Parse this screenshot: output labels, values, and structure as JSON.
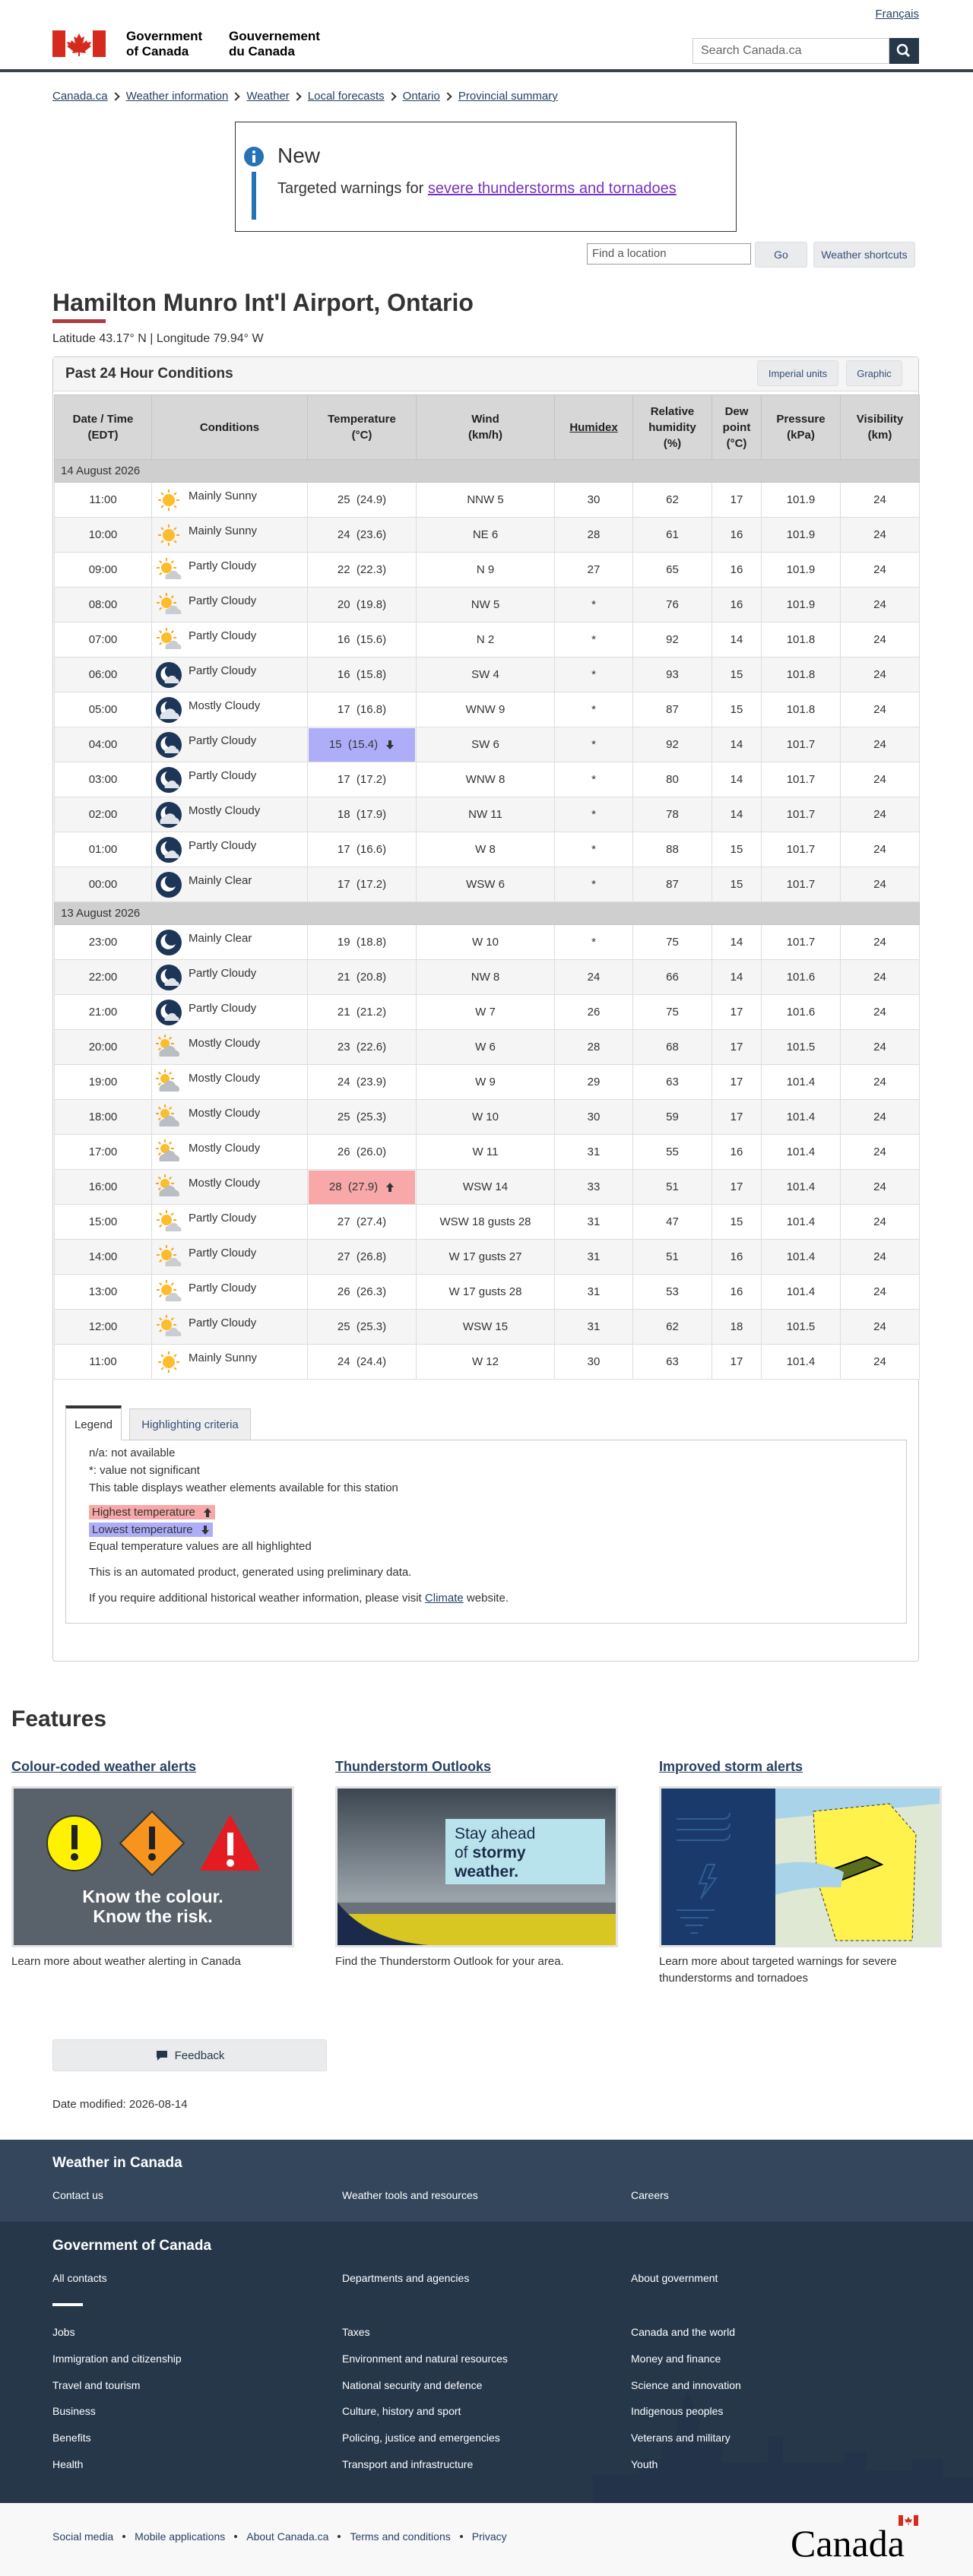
{
  "header": {
    "language": "Français",
    "gov_en": [
      "Government",
      "of Canada"
    ],
    "gov_fr": [
      "Gouvernement",
      "du Canada"
    ],
    "search_placeholder": "Search Canada.ca"
  },
  "breadcrumb": [
    "Canada.ca",
    "Weather information",
    "Weather",
    "Local forecasts",
    "Ontario",
    "Provincial summary"
  ],
  "notice": {
    "title": "New",
    "text": "Targeted warnings for ",
    "link": "severe thunderstorms and tornadoes"
  },
  "location_form": {
    "placeholder": "Find a location",
    "go": "Go",
    "shortcuts": "Weather shortcuts"
  },
  "page_title": "Hamilton Munro Int'l Airport, Ontario",
  "coordinates": "Latitude 43.17° N | Longitude 79.94° W",
  "conditions": {
    "title": "Past 24 Hour Conditions",
    "buttons": [
      "Imperial units",
      "Graphic"
    ],
    "columns": [
      [
        "Date / Time",
        "(EDT)"
      ],
      [
        "Conditions"
      ],
      [
        "Temperature",
        "(°C)"
      ],
      [
        "Wind",
        "(km/h)"
      ],
      [
        "Humidex"
      ],
      [
        "Relative",
        "humidity",
        "(%)"
      ],
      [
        "Dew",
        "point",
        "(°C)"
      ],
      [
        "Pressure",
        "(kPa)"
      ],
      [
        "Visibility",
        "(km)"
      ]
    ],
    "groups": [
      {
        "date": "14 August 2026",
        "rows": [
          {
            "time": "11:00",
            "icon": "sunny",
            "condition": "Mainly Sunny",
            "temperature": "25  (24.9)",
            "wind": "NNW 5",
            "humidex": "30",
            "humidity": 62,
            "dew_point": 17,
            "pressure": 101.9,
            "visibility": 24
          },
          {
            "time": "10:00",
            "icon": "sunny",
            "condition": "Mainly Sunny",
            "temperature": "24  (23.6)",
            "wind": "NE 6",
            "humidex": "28",
            "humidity": 61,
            "dew_point": 16,
            "pressure": 101.9,
            "visibility": 24
          },
          {
            "time": "09:00",
            "icon": "partly-day",
            "condition": "Partly Cloudy",
            "temperature": "22  (22.3)",
            "wind": "N 9",
            "humidex": "27",
            "humidity": 65,
            "dew_point": 16,
            "pressure": 101.9,
            "visibility": 24
          },
          {
            "time": "08:00",
            "icon": "partly-day",
            "condition": "Partly Cloudy",
            "temperature": "20  (19.8)",
            "wind": "NW 5",
            "humidex": "*",
            "humidity": 76,
            "dew_point": 16,
            "pressure": 101.9,
            "visibility": 24
          },
          {
            "time": "07:00",
            "icon": "partly-day",
            "condition": "Partly Cloudy",
            "temperature": "16  (15.6)",
            "wind": "N 2",
            "humidex": "*",
            "humidity": 92,
            "dew_point": 14,
            "pressure": 101.8,
            "visibility": 24
          },
          {
            "time": "06:00",
            "icon": "partly-night",
            "condition": "Partly Cloudy",
            "temperature": "16  (15.8)",
            "wind": "SW 4",
            "humidex": "*",
            "humidity": 93,
            "dew_point": 15,
            "pressure": 101.8,
            "visibility": 24
          },
          {
            "time": "05:00",
            "icon": "cloudy-night",
            "condition": "Mostly Cloudy",
            "temperature": "17  (16.8)",
            "wind": "WNW 9",
            "humidex": "*",
            "humidity": 87,
            "dew_point": 15,
            "pressure": 101.8,
            "visibility": 24
          },
          {
            "time": "04:00",
            "icon": "partly-night",
            "condition": "Partly Cloudy",
            "temperature": "15  (15.4)",
            "wind": "SW 6",
            "humidex": "*",
            "humidity": 92,
            "dew_point": 14,
            "pressure": 101.7,
            "visibility": 24,
            "highlight": "low"
          },
          {
            "time": "03:00",
            "icon": "partly-night",
            "condition": "Partly Cloudy",
            "temperature": "17  (17.2)",
            "wind": "WNW 8",
            "humidex": "*",
            "humidity": 80,
            "dew_point": 14,
            "pressure": 101.7,
            "visibility": 24
          },
          {
            "time": "02:00",
            "icon": "cloudy-night",
            "condition": "Mostly Cloudy",
            "temperature": "18  (17.9)",
            "wind": "NW 11",
            "humidex": "*",
            "humidity": 78,
            "dew_point": 14,
            "pressure": 101.7,
            "visibility": 24
          },
          {
            "time": "01:00",
            "icon": "partly-night",
            "condition": "Partly Cloudy",
            "temperature": "17  (16.6)",
            "wind": "W 8",
            "humidex": "*",
            "humidity": 88,
            "dew_point": 15,
            "pressure": 101.7,
            "visibility": 24
          },
          {
            "time": "00:00",
            "icon": "clear-night",
            "condition": "Mainly Clear",
            "temperature": "17  (17.2)",
            "wind": "WSW 6",
            "humidex": "*",
            "humidity": 87,
            "dew_point": 15,
            "pressure": 101.7,
            "visibility": 24
          }
        ]
      },
      {
        "date": "13 August 2026",
        "rows": [
          {
            "time": "23:00",
            "icon": "clear-night",
            "condition": "Mainly Clear",
            "temperature": "19  (18.8)",
            "wind": "W 10",
            "humidex": "*",
            "humidity": 75,
            "dew_point": 14,
            "pressure": 101.7,
            "visibility": 24
          },
          {
            "time": "22:00",
            "icon": "partly-night",
            "condition": "Partly Cloudy",
            "temperature": "21  (20.8)",
            "wind": "NW 8",
            "humidex": "24",
            "humidity": 66,
            "dew_point": 14,
            "pressure": 101.6,
            "visibility": 24
          },
          {
            "time": "21:00",
            "icon": "partly-night",
            "condition": "Partly Cloudy",
            "temperature": "21  (21.2)",
            "wind": "W 7",
            "humidex": "26",
            "humidity": 75,
            "dew_point": 17,
            "pressure": 101.6,
            "visibility": 24
          },
          {
            "time": "20:00",
            "icon": "cloudy-day",
            "condition": "Mostly Cloudy",
            "temperature": "23  (22.6)",
            "wind": "W 6",
            "humidex": "28",
            "humidity": 68,
            "dew_point": 17,
            "pressure": 101.5,
            "visibility": 24
          },
          {
            "time": "19:00",
            "icon": "cloudy-day",
            "condition": "Mostly Cloudy",
            "temperature": "24  (23.9)",
            "wind": "W 9",
            "humidex": "29",
            "humidity": 63,
            "dew_point": 17,
            "pressure": 101.4,
            "visibility": 24
          },
          {
            "time": "18:00",
            "icon": "cloudy-day",
            "condition": "Mostly Cloudy",
            "temperature": "25  (25.3)",
            "wind": "W 10",
            "humidex": "30",
            "humidity": 59,
            "dew_point": 17,
            "pressure": 101.4,
            "visibility": 24
          },
          {
            "time": "17:00",
            "icon": "cloudy-day",
            "condition": "Mostly Cloudy",
            "temperature": "26  (26.0)",
            "wind": "W 11",
            "humidex": "31",
            "humidity": 55,
            "dew_point": 16,
            "pressure": 101.4,
            "visibility": 24
          },
          {
            "time": "16:00",
            "icon": "cloudy-day",
            "condition": "Mostly Cloudy",
            "temperature": "28  (27.9)",
            "wind": "WSW 14",
            "humidex": "33",
            "humidity": 51,
            "dew_point": 17,
            "pressure": 101.4,
            "visibility": 24,
            "highlight": "high"
          },
          {
            "time": "15:00",
            "icon": "partly-day",
            "condition": "Partly Cloudy",
            "temperature": "27  (27.4)",
            "wind": "WSW 18 gusts 28",
            "humidex": "31",
            "humidity": 47,
            "dew_point": 15,
            "pressure": 101.4,
            "visibility": 24
          },
          {
            "time": "14:00",
            "icon": "partly-day",
            "condition": "Partly Cloudy",
            "temperature": "27  (26.8)",
            "wind": "W 17 gusts 27",
            "humidex": "31",
            "humidity": 51,
            "dew_point": 16,
            "pressure": 101.4,
            "visibility": 24
          },
          {
            "time": "13:00",
            "icon": "partly-day",
            "condition": "Partly Cloudy",
            "temperature": "26  (26.3)",
            "wind": "W 17 gusts 28",
            "humidex": "31",
            "humidity": 53,
            "dew_point": 16,
            "pressure": 101.4,
            "visibility": 24
          },
          {
            "time": "12:00",
            "icon": "partly-day",
            "condition": "Partly Cloudy",
            "temperature": "25  (25.3)",
            "wind": "WSW 15",
            "humidex": "31",
            "humidity": 62,
            "dew_point": 18,
            "pressure": 101.5,
            "visibility": 24
          },
          {
            "time": "11:00",
            "icon": "sunny",
            "condition": "Mainly Sunny",
            "temperature": "24  (24.4)",
            "wind": "W 12",
            "humidex": "30",
            "humidity": 63,
            "dew_point": 17,
            "pressure": 101.4,
            "visibility": 24
          }
        ]
      }
    ]
  },
  "legend": {
    "tabs": [
      "Legend",
      "Highlighting criteria"
    ],
    "notes": [
      "n/a: not available",
      "*: value not significant",
      "This table displays weather elements available for this station"
    ],
    "highest": "Highest temperature",
    "lowest": "Lowest temperature",
    "equal": "Equal temperature values are all highlighted",
    "automated": "This is an automated product, generated using preliminary data.",
    "historical": [
      "If you require additional historical weather information, please visit ",
      "Climate",
      " website."
    ]
  },
  "features": {
    "title": "Features",
    "items": [
      {
        "title": "Colour-coded weather alerts",
        "image": "alerts",
        "image_text": [
          "Know the colour.",
          "Know the risk."
        ],
        "caption": "Learn more about weather alerting in Canada"
      },
      {
        "title": "Thunderstorm Outlooks",
        "image": "thunderstorm",
        "image_text": [
          "Stay ahead",
          "of",
          "stormy",
          "weather."
        ],
        "caption": "Find the Thunderstorm Outlook for your area."
      },
      {
        "title": "Improved storm alerts",
        "image": "map",
        "caption": "Learn more about targeted warnings for severe thunderstorms and tornadoes"
      }
    ]
  },
  "feedback": "Feedback",
  "date_modified_label": "Date modified:",
  "date_modified": "2026-08-14",
  "footer": {
    "section_title": "Weather in Canada",
    "section_links": [
      "Contact us",
      "Weather tools and resources",
      "Careers"
    ],
    "gov_title": "Government of Canada",
    "gov_links": [
      "All contacts",
      "Departments and agencies",
      "About government"
    ],
    "topics": [
      [
        "Jobs",
        "Immigration and citizenship",
        "Travel and tourism",
        "Business",
        "Benefits",
        "Health"
      ],
      [
        "Taxes",
        "Environment and natural resources",
        "National security and defence",
        "Culture, history and sport",
        "Policing, justice and emergencies",
        "Transport and infrastructure"
      ],
      [
        "Canada and the world",
        "Money and finance",
        "Science and innovation",
        "Indigenous peoples",
        "Veterans and military",
        "Youth"
      ]
    ],
    "bottom_links": [
      "Social media",
      "Mobile applications",
      "About Canada.ca",
      "Terms and conditions",
      "Privacy"
    ],
    "wordmark": "Canada"
  }
}
